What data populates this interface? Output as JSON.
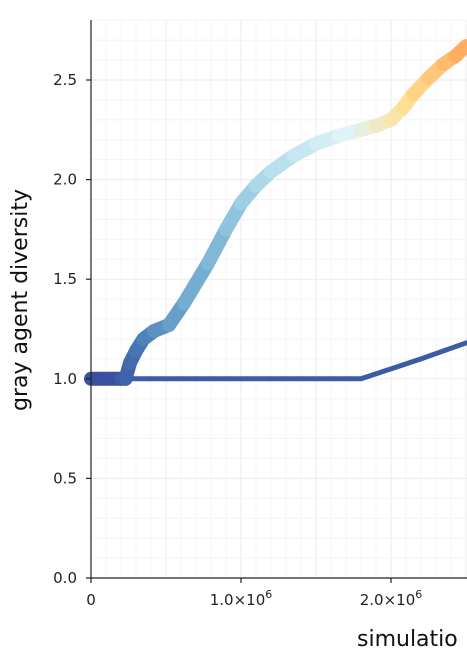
{
  "chart_data": {
    "type": "line",
    "xlabel": "simulatio",
    "ylabel": "gray agent diversity",
    "xlim": [
      0,
      2500000
    ],
    "ylim": [
      0,
      2.8
    ],
    "grid": true,
    "x_ticks": [
      {
        "value": 0,
        "label": "0",
        "sup": ""
      },
      {
        "value": 1000000,
        "label": "1.0×10",
        "sup": "6"
      },
      {
        "value": 2000000,
        "label": "2.0×10",
        "sup": "6"
      }
    ],
    "y_ticks": [
      {
        "value": 0.0,
        "label": "0.0"
      },
      {
        "value": 0.5,
        "label": "0.5"
      },
      {
        "value": 1.0,
        "label": "1.0"
      },
      {
        "value": 1.5,
        "label": "1.5"
      },
      {
        "value": 2.0,
        "label": "2.0"
      },
      {
        "value": 2.5,
        "label": "2.5"
      }
    ],
    "series": [
      {
        "style": "thick-gradient",
        "colors": [
          "#3b4fa0",
          "#4575b4",
          "#74add1",
          "#abd9e9",
          "#e0f3f8",
          "#fee090",
          "#fdae61"
        ],
        "x": [
          0,
          200000,
          230000,
          260000,
          300000,
          350000,
          420000,
          520000,
          620000,
          780000,
          900000,
          1000000,
          1100000,
          1200000,
          1350000,
          1500000,
          1650000,
          1800000,
          1900000,
          2000000,
          2080000,
          2150000,
          2250000,
          2350000,
          2430000,
          2500000
        ],
        "y": [
          1.0,
          1.0,
          1.0,
          1.08,
          1.14,
          1.2,
          1.24,
          1.27,
          1.38,
          1.58,
          1.75,
          1.88,
          1.97,
          2.04,
          2.12,
          2.18,
          2.22,
          2.25,
          2.27,
          2.3,
          2.36,
          2.43,
          2.51,
          2.58,
          2.62,
          2.67
        ]
      },
      {
        "style": "thin",
        "color": "#3b5ba5",
        "x": [
          0,
          1800000,
          2000000,
          2200000,
          2500000
        ],
        "y": [
          1.0,
          1.0,
          1.05,
          1.1,
          1.18
        ]
      }
    ]
  }
}
